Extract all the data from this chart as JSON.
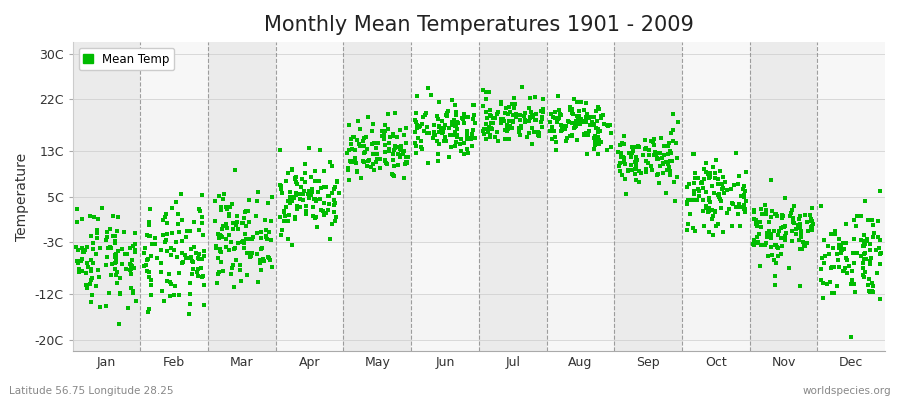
{
  "title": "Monthly Mean Temperatures 1901 - 2009",
  "ylabel": "Temperature",
  "xlabel_bottom_left": "Latitude 56.75 Longitude 28.25",
  "xlabel_bottom_right": "worldspecies.org",
  "yticks": [
    -20,
    -12,
    -3,
    5,
    13,
    22,
    30
  ],
  "ytick_labels": [
    "-20C",
    "-12C",
    "-3C",
    "5C",
    "13C",
    "22C",
    "30C"
  ],
  "ylim": [
    -22,
    32
  ],
  "months": [
    "Jan",
    "Feb",
    "Mar",
    "Apr",
    "May",
    "Jun",
    "Jul",
    "Aug",
    "Sep",
    "Oct",
    "Nov",
    "Dec"
  ],
  "dot_color": "#00BB00",
  "dot_size": 8,
  "background_color": "#ffffff",
  "band_color_even": "#ebebeb",
  "band_color_odd": "#f7f7f7",
  "title_fontsize": 15,
  "legend_label": "Mean Temp",
  "num_years": 109,
  "mean_temps": [
    -5.5,
    -6.0,
    -2.0,
    5.0,
    12.5,
    16.5,
    18.5,
    17.5,
    11.5,
    5.0,
    -1.0,
    -5.0
  ],
  "month_spreads": [
    4.5,
    4.8,
    3.8,
    3.2,
    2.8,
    2.5,
    2.2,
    2.2,
    2.5,
    2.8,
    3.2,
    4.2
  ]
}
